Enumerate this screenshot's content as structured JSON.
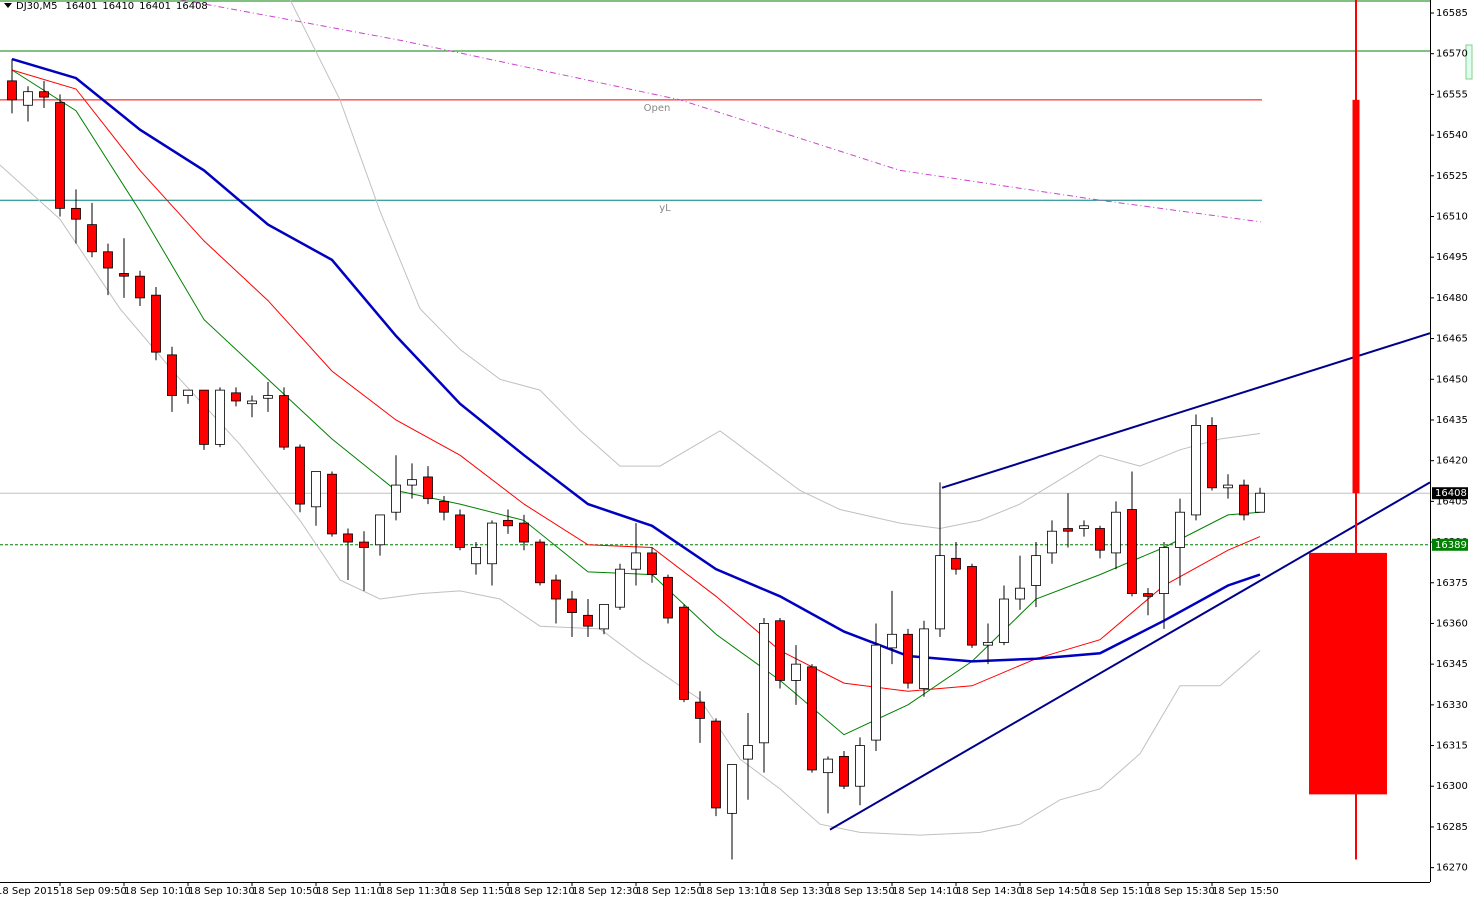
{
  "chart_data": {
    "type": "candlestick",
    "info": {
      "symbol": "DJ30,M5",
      "ohlc": [
        16401,
        16410,
        16401,
        16408
      ]
    },
    "xlim": [
      -0.75,
      88.625
    ],
    "ylim": [
      16264.7,
      16589.8
    ],
    "yticks": [
      16585,
      16570,
      16555,
      16540,
      16525,
      16510,
      16495,
      16480,
      16465,
      16450,
      16435,
      16420,
      16405,
      16390,
      16375,
      16360,
      16345,
      16330,
      16315,
      16300,
      16285,
      16270
    ],
    "xticks": [
      {
        "value": -1,
        "label": "18 Sep 2015"
      },
      {
        "value": 3,
        "label": "18 Sep 09:50"
      },
      {
        "value": 7,
        "label": "18 Sep 10:10"
      },
      {
        "value": 11,
        "label": "18 Sep 10:30"
      },
      {
        "value": 15,
        "label": "18 Sep 10:50"
      },
      {
        "value": 19,
        "label": "18 Sep 11:10"
      },
      {
        "value": 23,
        "label": "18 Sep 11:30"
      },
      {
        "value": 27,
        "label": "18 Sep 11:50"
      },
      {
        "value": 31,
        "label": "18 Sep 12:10"
      },
      {
        "value": 35,
        "label": "18 Sep 12:30"
      },
      {
        "value": 39,
        "label": "18 Sep 12:50"
      },
      {
        "value": 43,
        "label": "18 Sep 13:10"
      },
      {
        "value": 47,
        "label": "18 Sep 13:30"
      },
      {
        "value": 51,
        "label": "18 Sep 13:50"
      },
      {
        "value": 55,
        "label": "18 Sep 14:10"
      },
      {
        "value": 59,
        "label": "18 Sep 14:30"
      },
      {
        "value": 63,
        "label": "18 Sep 14:50"
      },
      {
        "value": 67,
        "label": "18 Sep 15:10"
      },
      {
        "value": 71,
        "label": "18 Sep 15:30"
      },
      {
        "value": 75,
        "label": "18 Sep 15:50"
      }
    ],
    "up_color": "#ffffff",
    "down_color": "#ff0000",
    "open": [
      16560,
      16551,
      16556,
      16552,
      16513,
      16507,
      16497,
      16489,
      16488,
      16481,
      16459,
      16444,
      16446,
      16426,
      16445,
      16441,
      16443,
      16444,
      16425,
      16403,
      16415,
      16393,
      16390,
      16389,
      16401,
      16411,
      16414,
      16405,
      16400,
      16382,
      16382,
      16398,
      16397,
      16390,
      16376,
      16369,
      16363,
      16358,
      16366,
      16380,
      16386,
      16377,
      16366,
      16331,
      16324,
      16290,
      16310,
      16316,
      16361,
      16339,
      16344,
      16305,
      16311,
      16300,
      16317,
      16351,
      16356,
      16336,
      16358,
      16384,
      16381,
      16352,
      16353,
      16369,
      16374,
      16386,
      16395,
      16395,
      16395,
      16386,
      16402,
      16371,
      16371,
      16388,
      16400,
      16433,
      16410,
      16411,
      16401
    ],
    "high": [
      16568,
      16558,
      16560,
      16555,
      16520,
      16515,
      16500,
      16502,
      16490,
      16484,
      16462,
      16446,
      16446,
      16447,
      16447,
      16444,
      16449,
      16447,
      16426,
      16416,
      16416,
      16395,
      16394,
      16400,
      16422,
      16419,
      16418,
      16407,
      16402,
      16390,
      16398,
      16402,
      16400,
      16391,
      16378,
      16372,
      16369,
      16367,
      16382,
      16397,
      16388,
      16378,
      16367,
      16335,
      16325,
      16308,
      16327,
      16362,
      16362,
      16352,
      16345,
      16311,
      16313,
      16318,
      16360,
      16372,
      16358,
      16361,
      16412,
      16390,
      16382,
      16360,
      16374,
      16385,
      16390,
      16398,
      16408,
      16398,
      16396,
      16405,
      16416,
      16373,
      16390,
      16406,
      16437,
      16436,
      16415,
      16413,
      16410
    ],
    "low": [
      16548,
      16545,
      16550,
      16510,
      16500,
      16495,
      16481,
      16480,
      16477,
      16457,
      16438,
      16441,
      16424,
      16425,
      16440,
      16436,
      16438,
      16424,
      16401,
      16396,
      16392,
      16376,
      16372,
      16385,
      16398,
      16406,
      16404,
      16398,
      16387,
      16378,
      16374,
      16393,
      16387,
      16374,
      16360,
      16355,
      16355,
      16356,
      16365,
      16374,
      16375,
      16360,
      16331,
      16316,
      16289,
      16273,
      16295,
      16305,
      16336,
      16330,
      16305,
      16290,
      16299,
      16293,
      16313,
      16345,
      16336,
      16333,
      16355,
      16378,
      16351,
      16345,
      16352,
      16365,
      16366,
      16382,
      16388,
      16392,
      16384,
      16380,
      16370,
      16363,
      16358,
      16374,
      16398,
      16409,
      16406,
      16398,
      16401
    ],
    "close": [
      16553,
      16556,
      16554,
      16513,
      16509,
      16497,
      16491,
      16488,
      16480,
      16460,
      16444,
      16446,
      16426,
      16446,
      16442,
      16442,
      16444,
      16425,
      16404,
      16416,
      16393,
      16390,
      16388,
      16400,
      16411,
      16413,
      16406,
      16401,
      16388,
      16388,
      16397,
      16396,
      16390,
      16375,
      16369,
      16364,
      16359,
      16367,
      16380,
      16386,
      16378,
      16362,
      16332,
      16325,
      16292,
      16308,
      16315,
      16360,
      16339,
      16345,
      16306,
      16310,
      16300,
      16315,
      16352,
      16356,
      16338,
      16358,
      16385,
      16380,
      16352,
      16353,
      16369,
      16373,
      16385,
      16394,
      16394,
      16396,
      16387,
      16401,
      16371,
      16370,
      16388,
      16401,
      16433,
      16410,
      16411,
      16400,
      16408
    ],
    "lines": [
      {
        "color": "#c0c0c0",
        "width": 1,
        "x": [
          17.375,
          20.5,
          23,
          25.5,
          28,
          30.5,
          33,
          35.5,
          38,
          40.5,
          44.25,
          46.75,
          49.25,
          51.75,
          55.5,
          58,
          60.5,
          63,
          65.5,
          68,
          70.5,
          73,
          75.5,
          78
        ],
        "values": [
          16590,
          16553,
          16512,
          16476,
          16461,
          16450,
          16446,
          16431,
          16418,
          16418,
          16431,
          16420,
          16409,
          16402,
          16397,
          16395,
          16398,
          16404,
          16413,
          16422,
          16418,
          16424,
          16428,
          16430
        ]
      },
      {
        "color": "#c0c0c0",
        "width": 1,
        "x": [
          -0.75,
          3,
          6.75,
          10.5,
          14.25,
          18,
          20.5,
          23,
          25.5,
          28,
          30.5,
          33,
          36.75,
          39.25,
          43,
          45.5,
          48,
          50.5,
          53,
          56.75,
          60.5,
          63,
          65.5,
          68,
          70.5,
          73,
          75.5,
          78
        ],
        "values": [
          16529,
          16509,
          16476,
          16450,
          16426,
          16398,
          16376,
          16369,
          16371,
          16372,
          16369,
          16359,
          16358,
          16347,
          16332,
          16310,
          16299,
          16286,
          16283,
          16282,
          16283,
          16286,
          16295,
          16299,
          16312,
          16337,
          16337,
          16350
        ]
      },
      {
        "color": "#cc44cc",
        "width": 1,
        "dash": true,
        "x": [
          10.5,
          24.25,
          41.75,
          55.5,
          68,
          78.06
        ],
        "values": [
          16590,
          16575,
          16553,
          16527,
          16516,
          16508
        ]
      },
      {
        "color": "#008000",
        "width": 1,
        "x": [
          0,
          4,
          8,
          12,
          16,
          20,
          24,
          28,
          32,
          36,
          40,
          44,
          48,
          52,
          56,
          60,
          64,
          68,
          72,
          76,
          78
        ],
        "values": [
          16564,
          16549,
          16512,
          16472,
          16450,
          16428,
          16409,
          16404,
          16398,
          16379,
          16378,
          16356,
          16339,
          16319,
          16330,
          16346,
          16369,
          16378,
          16388,
          16400,
          16401
        ]
      },
      {
        "color": "#ff0000",
        "width": 1,
        "x": [
          0,
          4,
          8,
          12,
          16,
          20,
          24,
          28,
          32,
          36,
          40,
          44,
          48,
          52,
          56,
          60,
          64,
          68,
          72,
          76,
          78
        ],
        "values": [
          16564,
          16557,
          16527,
          16501,
          16479,
          16453,
          16435,
          16422,
          16404,
          16389,
          16388,
          16370,
          16350,
          16338,
          16335,
          16337,
          16347,
          16354,
          16374,
          16387,
          16392
        ]
      },
      {
        "color": "#0000c0",
        "width": 2.5,
        "x": [
          0,
          4,
          8,
          12,
          16,
          20,
          24,
          28,
          32,
          36,
          40,
          44,
          48,
          52,
          56,
          60,
          64,
          68,
          72,
          76,
          78
        ],
        "values": [
          16568,
          16561,
          16542,
          16527,
          16507,
          16494,
          16466,
          16441,
          16422,
          16404,
          16396,
          16380,
          16370,
          16357,
          16348,
          16346,
          16347,
          16349,
          16361,
          16374,
          16378
        ]
      }
    ],
    "levels": [
      {
        "value": 16571,
        "color": "#008000"
      },
      {
        "value": 16553,
        "color": "#ff0000",
        "label": "Open"
      },
      {
        "value": 16516,
        "color": "#008080",
        "label": "yL"
      },
      {
        "value": 16408,
        "color": "#c0c0c0",
        "tag_color": "#000000"
      },
      {
        "value": 16389,
        "color": "#008000",
        "dash": true,
        "tag_color": "#008000"
      }
    ],
    "trendlines": [
      {
        "color": "#00008b",
        "x": [
          51.125,
          88.625
        ],
        "values": [
          16284,
          16412
        ]
      },
      {
        "color": "#00008b",
        "x": [
          58.125,
          88.625
        ],
        "values": [
          16410,
          16467
        ]
      }
    ],
    "overlay_candles": [
      {
        "x": 84,
        "open": 16553,
        "high": 16590,
        "low": 16273,
        "close": 16408,
        "color": "#ff0000"
      },
      {
        "x": 83.5,
        "open": 16386,
        "close": 16297,
        "color": "#ff0000"
      }
    ]
  }
}
